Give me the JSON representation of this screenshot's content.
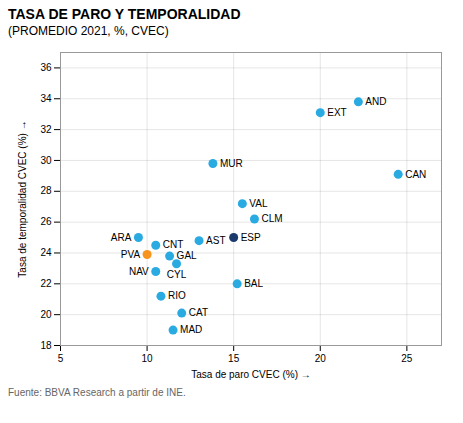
{
  "chart_data": {
    "type": "scatter",
    "title": "TASA DE PARO Y TEMPORALIDAD",
    "subtitle": "(PROMEDIO 2021, %, CVEC)",
    "xlabel": "Tasa de paro CVEC (%)",
    "ylabel": "Tasa de temporalidad CVEC (%)",
    "footnote": "Fuente: BBVA Research a partir de INE.",
    "labels": [
      "AND",
      "ARA",
      "AST",
      "BAL",
      "CAN",
      "CNT",
      "CLM",
      "CAT",
      "EXT",
      "GAL",
      "RIO",
      "MAD",
      "MUR",
      "NAV",
      "PVA",
      "VAL",
      "CYL",
      "ESP"
    ],
    "x": [
      22.2,
      9.5,
      13.0,
      15.2,
      24.5,
      10.5,
      16.2,
      12.0,
      20.0,
      11.3,
      10.8,
      11.5,
      13.8,
      10.5,
      10.0,
      15.5,
      11.7,
      15.0
    ],
    "values": [
      33.8,
      25.0,
      24.8,
      22.0,
      29.1,
      24.5,
      26.2,
      20.1,
      33.1,
      23.8,
      21.2,
      19.0,
      29.8,
      22.8,
      23.9,
      27.2,
      23.3,
      25.0
    ],
    "colors": [
      "#29ABE2",
      "#29ABE2",
      "#29ABE2",
      "#29ABE2",
      "#29ABE2",
      "#29ABE2",
      "#29ABE2",
      "#29ABE2",
      "#29ABE2",
      "#29ABE2",
      "#29ABE2",
      "#29ABE2",
      "#29ABE2",
      "#29ABE2",
      "#F7941D",
      "#29ABE2",
      "#29ABE2",
      "#1a3a6b"
    ],
    "xlim": [
      5,
      27
    ],
    "ylim": [
      18,
      37
    ],
    "xticks": [
      5,
      10,
      15,
      20,
      25
    ],
    "yticks": [
      18,
      20,
      22,
      24,
      26,
      28,
      30,
      32,
      34,
      36
    ],
    "grid": true
  }
}
